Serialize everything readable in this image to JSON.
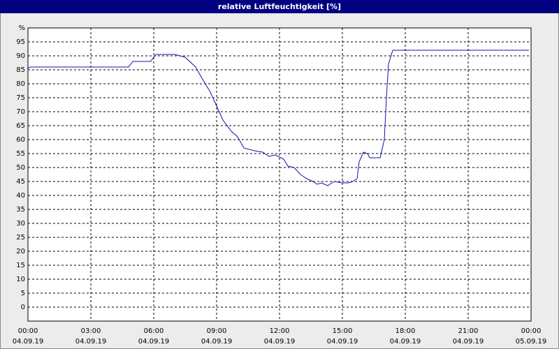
{
  "chart_data": {
    "type": "line",
    "title": "relative Luftfeuchtigkeit [%]",
    "x": [
      0,
      0.1,
      4.8,
      5.0,
      5.85,
      6.1,
      7.0,
      7.5,
      8.0,
      8.3,
      8.7,
      9.0,
      9.3,
      9.7,
      10.0,
      10.3,
      10.8,
      11.2,
      11.5,
      11.8,
      12.2,
      12.4,
      12.7,
      13.0,
      13.3,
      13.6,
      13.8,
      14.0,
      14.3,
      14.6,
      15.0,
      15.3,
      15.5,
      15.7,
      15.8,
      16.0,
      16.2,
      16.3,
      16.8,
      17.0,
      17.1,
      17.2,
      17.4,
      23.9
    ],
    "series": [
      {
        "name": "relative Luftfeuchtigkeit",
        "color": "#1010b0",
        "values": [
          85.5,
          86,
          86,
          88,
          88,
          90.5,
          90.5,
          89.5,
          86,
          82,
          77,
          72,
          67,
          63,
          61,
          57,
          56,
          55.5,
          54,
          54.5,
          53,
          50.5,
          50,
          47.5,
          46,
          45,
          44,
          44.5,
          43.5,
          45,
          44.5,
          44.5,
          45,
          46,
          52,
          55.5,
          55,
          53.5,
          53.5,
          60,
          75,
          87,
          92,
          92
        ]
      }
    ],
    "xlim": [
      0,
      24
    ],
    "xticks": [
      {
        "value": 0,
        "label": "00:00"
      },
      {
        "value": 3,
        "label": "03:00"
      },
      {
        "value": 6,
        "label": "06:00"
      },
      {
        "value": 9,
        "label": "09:00"
      },
      {
        "value": 12,
        "label": "12:00"
      },
      {
        "value": 15,
        "label": "15:00"
      },
      {
        "value": 18,
        "label": "18:00"
      },
      {
        "value": 21,
        "label": "21:00"
      },
      {
        "value": 24,
        "label": "00:00"
      }
    ],
    "xtick_dates": [
      "04.09.19",
      "04.09.19",
      "04.09.19",
      "04.09.19",
      "04.09.19",
      "04.09.19",
      "04.09.19",
      "04.09.19",
      "05.09.19"
    ],
    "ylim": [
      -5,
      100
    ],
    "yticks": [
      0,
      5,
      10,
      15,
      20,
      25,
      30,
      35,
      40,
      45,
      50,
      55,
      60,
      65,
      70,
      75,
      80,
      85,
      90,
      95,
      {
        "value": 100,
        "label": "%"
      }
    ],
    "grid": true
  }
}
